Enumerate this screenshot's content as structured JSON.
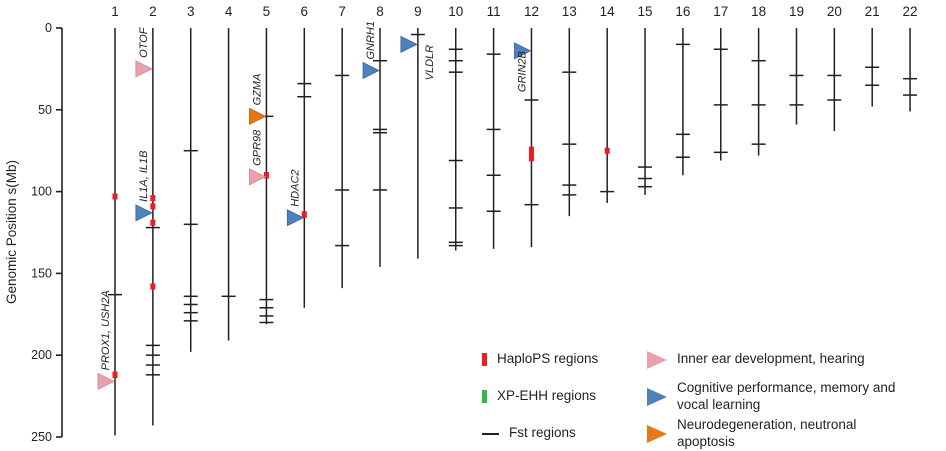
{
  "figure": {
    "ylabel": "Genomic Position s(Mb)"
  },
  "chart_data": {
    "type": "ideogram",
    "title": "",
    "ylabel": "Genomic Position s(Mb)",
    "ylim": [
      0,
      250
    ],
    "y_ticks": [
      0,
      50,
      100,
      150,
      200,
      250
    ],
    "marker_colors": {
      "haplops": "#ed1c24",
      "xpehh": "#39b54a",
      "fst": "#231f20"
    },
    "gene_categories": {
      "hearing": {
        "color": "#e8a2ac",
        "stroke": "#d08894"
      },
      "cognitive": {
        "color": "#4f81bd",
        "stroke": "#3a66a0"
      },
      "neuro": {
        "color": "#e77817",
        "stroke": "#c45f08"
      }
    },
    "chromosomes": [
      {
        "name": "1",
        "length": 249,
        "fst": [
          163
        ],
        "haplops": [
          {
            "pos": 103,
            "span": 3
          },
          {
            "pos": 212,
            "span": 4
          }
        ],
        "genes": [
          {
            "label": "PROX1, USH2A",
            "pos": 216,
            "type": "hearing",
            "label_side": "left"
          }
        ]
      },
      {
        "name": "2",
        "length": 243,
        "fst": [
          122,
          194,
          200,
          206,
          212
        ],
        "haplops": [
          {
            "pos": 104,
            "span": 3
          },
          {
            "pos": 109,
            "span": 3
          },
          {
            "pos": 119,
            "span": 3
          },
          {
            "pos": 158,
            "span": 3
          }
        ],
        "genes": [
          {
            "label": "OTOF",
            "pos": 25,
            "type": "hearing",
            "label_side": "left"
          },
          {
            "label": "IL1A, IL1B",
            "pos": 113,
            "type": "cognitive",
            "label_side": "left"
          }
        ]
      },
      {
        "name": "3",
        "length": 198,
        "fst": [
          75,
          120,
          164,
          169,
          174,
          179
        ],
        "haplops": [],
        "genes": []
      },
      {
        "name": "4",
        "length": 191,
        "fst": [
          164
        ],
        "haplops": [],
        "genes": []
      },
      {
        "name": "5",
        "length": 181,
        "fst": [
          54,
          166,
          171,
          176,
          180
        ],
        "haplops": [
          {
            "pos": 90,
            "span": 4
          }
        ],
        "genes": [
          {
            "label": "GZMA",
            "pos": 54,
            "type": "neuro",
            "label_side": "left"
          },
          {
            "label": "GPR98",
            "pos": 91,
            "type": "hearing",
            "label_side": "left"
          }
        ]
      },
      {
        "name": "6",
        "length": 171,
        "fst": [
          34,
          42
        ],
        "haplops": [
          {
            "pos": 114,
            "span": 4
          }
        ],
        "genes": [
          {
            "label": "HDAC2",
            "pos": 116,
            "type": "cognitive",
            "label_side": "left"
          }
        ]
      },
      {
        "name": "7",
        "length": 159,
        "fst": [
          29,
          99,
          133
        ],
        "haplops": [],
        "genes": []
      },
      {
        "name": "8",
        "length": 146,
        "fst": [
          20,
          62,
          64,
          99
        ],
        "haplops": [],
        "genes": [
          {
            "label": "GNRH1",
            "pos": 26,
            "type": "cognitive",
            "label_side": "left"
          }
        ]
      },
      {
        "name": "9",
        "length": 141,
        "fst": [
          4
        ],
        "haplops": [],
        "genes": [
          {
            "label": "VLDLR",
            "pos": 10,
            "type": "cognitive",
            "label_side": "right",
            "label_below": true
          }
        ]
      },
      {
        "name": "10",
        "length": 136,
        "fst": [
          13,
          20,
          27,
          81,
          110,
          131,
          133
        ],
        "haplops": [],
        "genes": []
      },
      {
        "name": "11",
        "length": 135,
        "fst": [
          16,
          62,
          90,
          112
        ],
        "haplops": [],
        "genes": []
      },
      {
        "name": "12",
        "length": 134,
        "fst": [
          44,
          108
        ],
        "haplops": [
          {
            "pos": 77,
            "span": 9
          }
        ],
        "genes": [
          {
            "label": "GRIN2B",
            "pos": 14,
            "type": "cognitive",
            "label_side": "left",
            "label_below": true
          }
        ]
      },
      {
        "name": "13",
        "length": 115,
        "fst": [
          27,
          71,
          96,
          102
        ],
        "haplops": [],
        "genes": []
      },
      {
        "name": "14",
        "length": 107,
        "fst": [
          100
        ],
        "haplops": [
          {
            "pos": 75,
            "span": 3
          }
        ],
        "genes": []
      },
      {
        "name": "15",
        "length": 102,
        "fst": [
          85,
          92,
          97
        ],
        "haplops": [],
        "genes": []
      },
      {
        "name": "16",
        "length": 90,
        "fst": [
          10,
          65,
          79
        ],
        "haplops": [],
        "genes": []
      },
      {
        "name": "17",
        "length": 81,
        "fst": [
          13,
          47,
          76
        ],
        "haplops": [],
        "genes": []
      },
      {
        "name": "18",
        "length": 78,
        "fst": [
          20,
          47,
          71
        ],
        "haplops": [],
        "genes": []
      },
      {
        "name": "19",
        "length": 59,
        "fst": [
          29,
          47
        ],
        "haplops": [],
        "genes": []
      },
      {
        "name": "20",
        "length": 63,
        "fst": [
          29,
          44
        ],
        "haplops": [],
        "genes": []
      },
      {
        "name": "21",
        "length": 48,
        "fst": [
          24,
          35
        ],
        "haplops": [],
        "genes": []
      },
      {
        "name": "22",
        "length": 51,
        "fst": [
          31,
          41
        ],
        "haplops": [],
        "genes": []
      }
    ]
  },
  "legend": {
    "markers": [
      {
        "id": "haplops",
        "label": "HaploPS regions",
        "color": "#ed1c24",
        "shape": "vrect"
      },
      {
        "id": "xpehh",
        "label": "XP-EHH regions",
        "color": "#39b54a",
        "shape": "vrect"
      },
      {
        "id": "fst",
        "label": "Fst regions",
        "color": "#231f20",
        "shape": "hline"
      }
    ],
    "annotations": [
      {
        "id": "hearing",
        "label": "Inner ear development, hearing",
        "color": "#e8a2ac"
      },
      {
        "id": "cognitive",
        "label": "Cognitive performance, memory and vocal learning",
        "color": "#4f81bd"
      },
      {
        "id": "neuro",
        "label": "Neurodegeneration, neutronal apoptosis",
        "color": "#e77817"
      }
    ]
  }
}
